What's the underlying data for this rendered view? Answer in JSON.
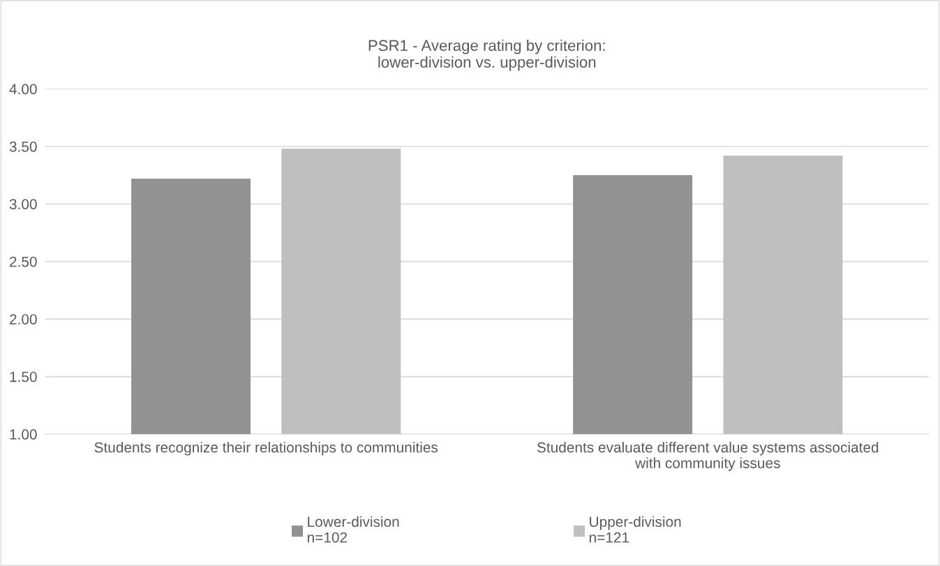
{
  "chart_data": {
    "type": "bar",
    "title": "PSR1 - Average rating by criterion:\nlower-division vs. upper-division",
    "categories": [
      "Students recognize their relationships to communities",
      "Students evaluate different value systems associated\nwith community issues"
    ],
    "series": [
      {
        "name": "Lower-division\nn=102",
        "color": "#929292",
        "values": [
          3.22,
          3.25
        ]
      },
      {
        "name": "Upper-division\nn=121",
        "color": "#bfbfbf",
        "values": [
          3.48,
          3.42
        ]
      }
    ],
    "ylim": [
      1,
      4
    ],
    "yticks": [
      {
        "value": 1,
        "label": "1.00"
      },
      {
        "value": 1.5,
        "label": "1.50"
      },
      {
        "value": 2,
        "label": "2.00"
      },
      {
        "value": 2.5,
        "label": "2.50"
      },
      {
        "value": 3,
        "label": "3.00"
      },
      {
        "value": 3.5,
        "label": "3.50"
      },
      {
        "value": 4,
        "label": "4.00"
      }
    ],
    "grid": "y",
    "legend": "bottom"
  }
}
